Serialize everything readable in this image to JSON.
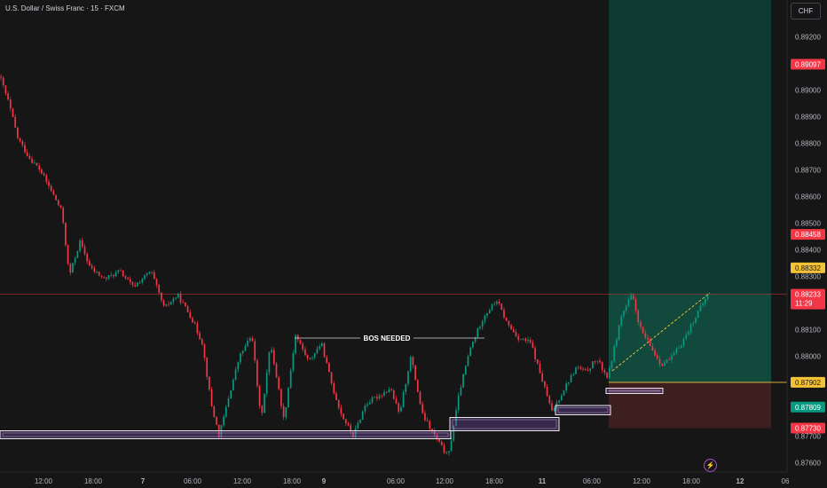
{
  "header": {
    "symbol_title": "U.S. Dollar / Swiss Franc · 15 · FXCM",
    "currency_label": "CHF"
  },
  "price_axis": {
    "ticks": [
      "0.89200",
      "0.89100",
      "0.89000",
      "0.88900",
      "0.88800",
      "0.88700",
      "0.88600",
      "0.88500",
      "0.88400",
      "0.88300",
      "0.88100",
      "0.88000",
      "0.87700",
      "0.87600"
    ],
    "tick_values": [
      0.892,
      0.891,
      0.89,
      0.889,
      0.888,
      0.887,
      0.886,
      0.885,
      0.884,
      0.883,
      0.881,
      0.88,
      0.877,
      0.876
    ],
    "badges": [
      {
        "text": "0.89097",
        "value": 0.89097,
        "color": "#f23645",
        "text_color": "#ffffff"
      },
      {
        "text": "0.88458",
        "value": 0.88458,
        "color": "#f23645",
        "text_color": "#ffffff"
      },
      {
        "text": "0.88332",
        "value": 0.88332,
        "color": "#f5c236",
        "text_color": "#131722"
      },
      {
        "text": "0.87902",
        "value": 0.87902,
        "color": "#f5c236",
        "text_color": "#131722"
      },
      {
        "text": "0.87809",
        "value": 0.87809,
        "color": "#089981",
        "text_color": "#ffffff"
      },
      {
        "text": "0.87730",
        "value": 0.8773,
        "color": "#f23645",
        "text_color": "#ffffff"
      }
    ],
    "current_price": {
      "text": "0.88233",
      "countdown": "11:29",
      "value": 0.88233,
      "color": "#f23645"
    }
  },
  "time_axis": {
    "labels": [
      {
        "text": "12:00",
        "bold": false
      },
      {
        "text": "18:00",
        "bold": false
      },
      {
        "text": "7",
        "bold": true
      },
      {
        "text": "06:00",
        "bold": false
      },
      {
        "text": "12:00",
        "bold": false
      },
      {
        "text": "18:00",
        "bold": false
      },
      {
        "text": "9",
        "bold": true
      },
      {
        "text": "06:00",
        "bold": false
      },
      {
        "text": "12:00",
        "bold": false
      },
      {
        "text": "18:00",
        "bold": false
      },
      {
        "text": "11",
        "bold": true
      },
      {
        "text": "06:00",
        "bold": false
      },
      {
        "text": "12:00",
        "bold": false
      },
      {
        "text": "18:00",
        "bold": false
      },
      {
        "text": "12",
        "bold": true
      },
      {
        "text": "06",
        "bold": false
      }
    ]
  },
  "annotations": {
    "bos_label": "BOS NEEDED"
  },
  "chart_data": {
    "type": "candlestick",
    "price_scale": [
      0.8755,
      0.893
    ],
    "price_path": [
      [
        0,
        0.8905
      ],
      [
        10,
        0.8895
      ],
      [
        20,
        0.8882
      ],
      [
        32,
        0.8875
      ],
      [
        45,
        0.887
      ],
      [
        58,
        0.8862
      ],
      [
        70,
        0.8854
      ],
      [
        78,
        0.883
      ],
      [
        90,
        0.8843
      ],
      [
        102,
        0.8833
      ],
      [
        118,
        0.8829
      ],
      [
        135,
        0.8832
      ],
      [
        150,
        0.8826
      ],
      [
        170,
        0.8832
      ],
      [
        185,
        0.8818
      ],
      [
        200,
        0.8823
      ],
      [
        215,
        0.8815
      ],
      [
        228,
        0.8805
      ],
      [
        238,
        0.8782
      ],
      [
        247,
        0.877
      ],
      [
        258,
        0.8785
      ],
      [
        270,
        0.88
      ],
      [
        284,
        0.8808
      ],
      [
        294,
        0.8776
      ],
      [
        305,
        0.8805
      ],
      [
        320,
        0.8776
      ],
      [
        333,
        0.8808
      ],
      [
        348,
        0.8798
      ],
      [
        362,
        0.8805
      ],
      [
        375,
        0.8788
      ],
      [
        385,
        0.8778
      ],
      [
        398,
        0.877
      ],
      [
        412,
        0.8782
      ],
      [
        426,
        0.8785
      ],
      [
        440,
        0.8788
      ],
      [
        450,
        0.8778
      ],
      [
        463,
        0.88
      ],
      [
        476,
        0.8778
      ],
      [
        490,
        0.877
      ],
      [
        505,
        0.8762
      ],
      [
        518,
        0.8787
      ],
      [
        530,
        0.8803
      ],
      [
        545,
        0.8815
      ],
      [
        560,
        0.8821
      ],
      [
        572,
        0.8812
      ],
      [
        584,
        0.8807
      ],
      [
        598,
        0.8805
      ],
      [
        612,
        0.879
      ],
      [
        622,
        0.8779
      ],
      [
        636,
        0.8788
      ],
      [
        650,
        0.8796
      ],
      [
        660,
        0.8794
      ],
      [
        672,
        0.8799
      ],
      [
        685,
        0.8792
      ],
      [
        700,
        0.8815
      ],
      [
        712,
        0.8823
      ],
      [
        722,
        0.881
      ],
      [
        734,
        0.8803
      ],
      [
        745,
        0.8797
      ],
      [
        756,
        0.8799
      ],
      [
        770,
        0.8806
      ],
      [
        784,
        0.8815
      ],
      [
        798,
        0.88233
      ]
    ],
    "position_tool": {
      "entry": 0.87902,
      "target": 0.88233,
      "stop": 0.8773,
      "chart_top_target": 0.893
    },
    "zones": [
      {
        "from": 0.8772,
        "to": 0.8769,
        "label": ""
      },
      {
        "from": 0.8777,
        "to": 0.8772,
        "label": ""
      },
      {
        "from": 0.87815,
        "to": 0.8778,
        "label": ""
      },
      {
        "from": 0.8788,
        "to": 0.8786,
        "label": ""
      }
    ],
    "bos_level": 0.8809
  }
}
